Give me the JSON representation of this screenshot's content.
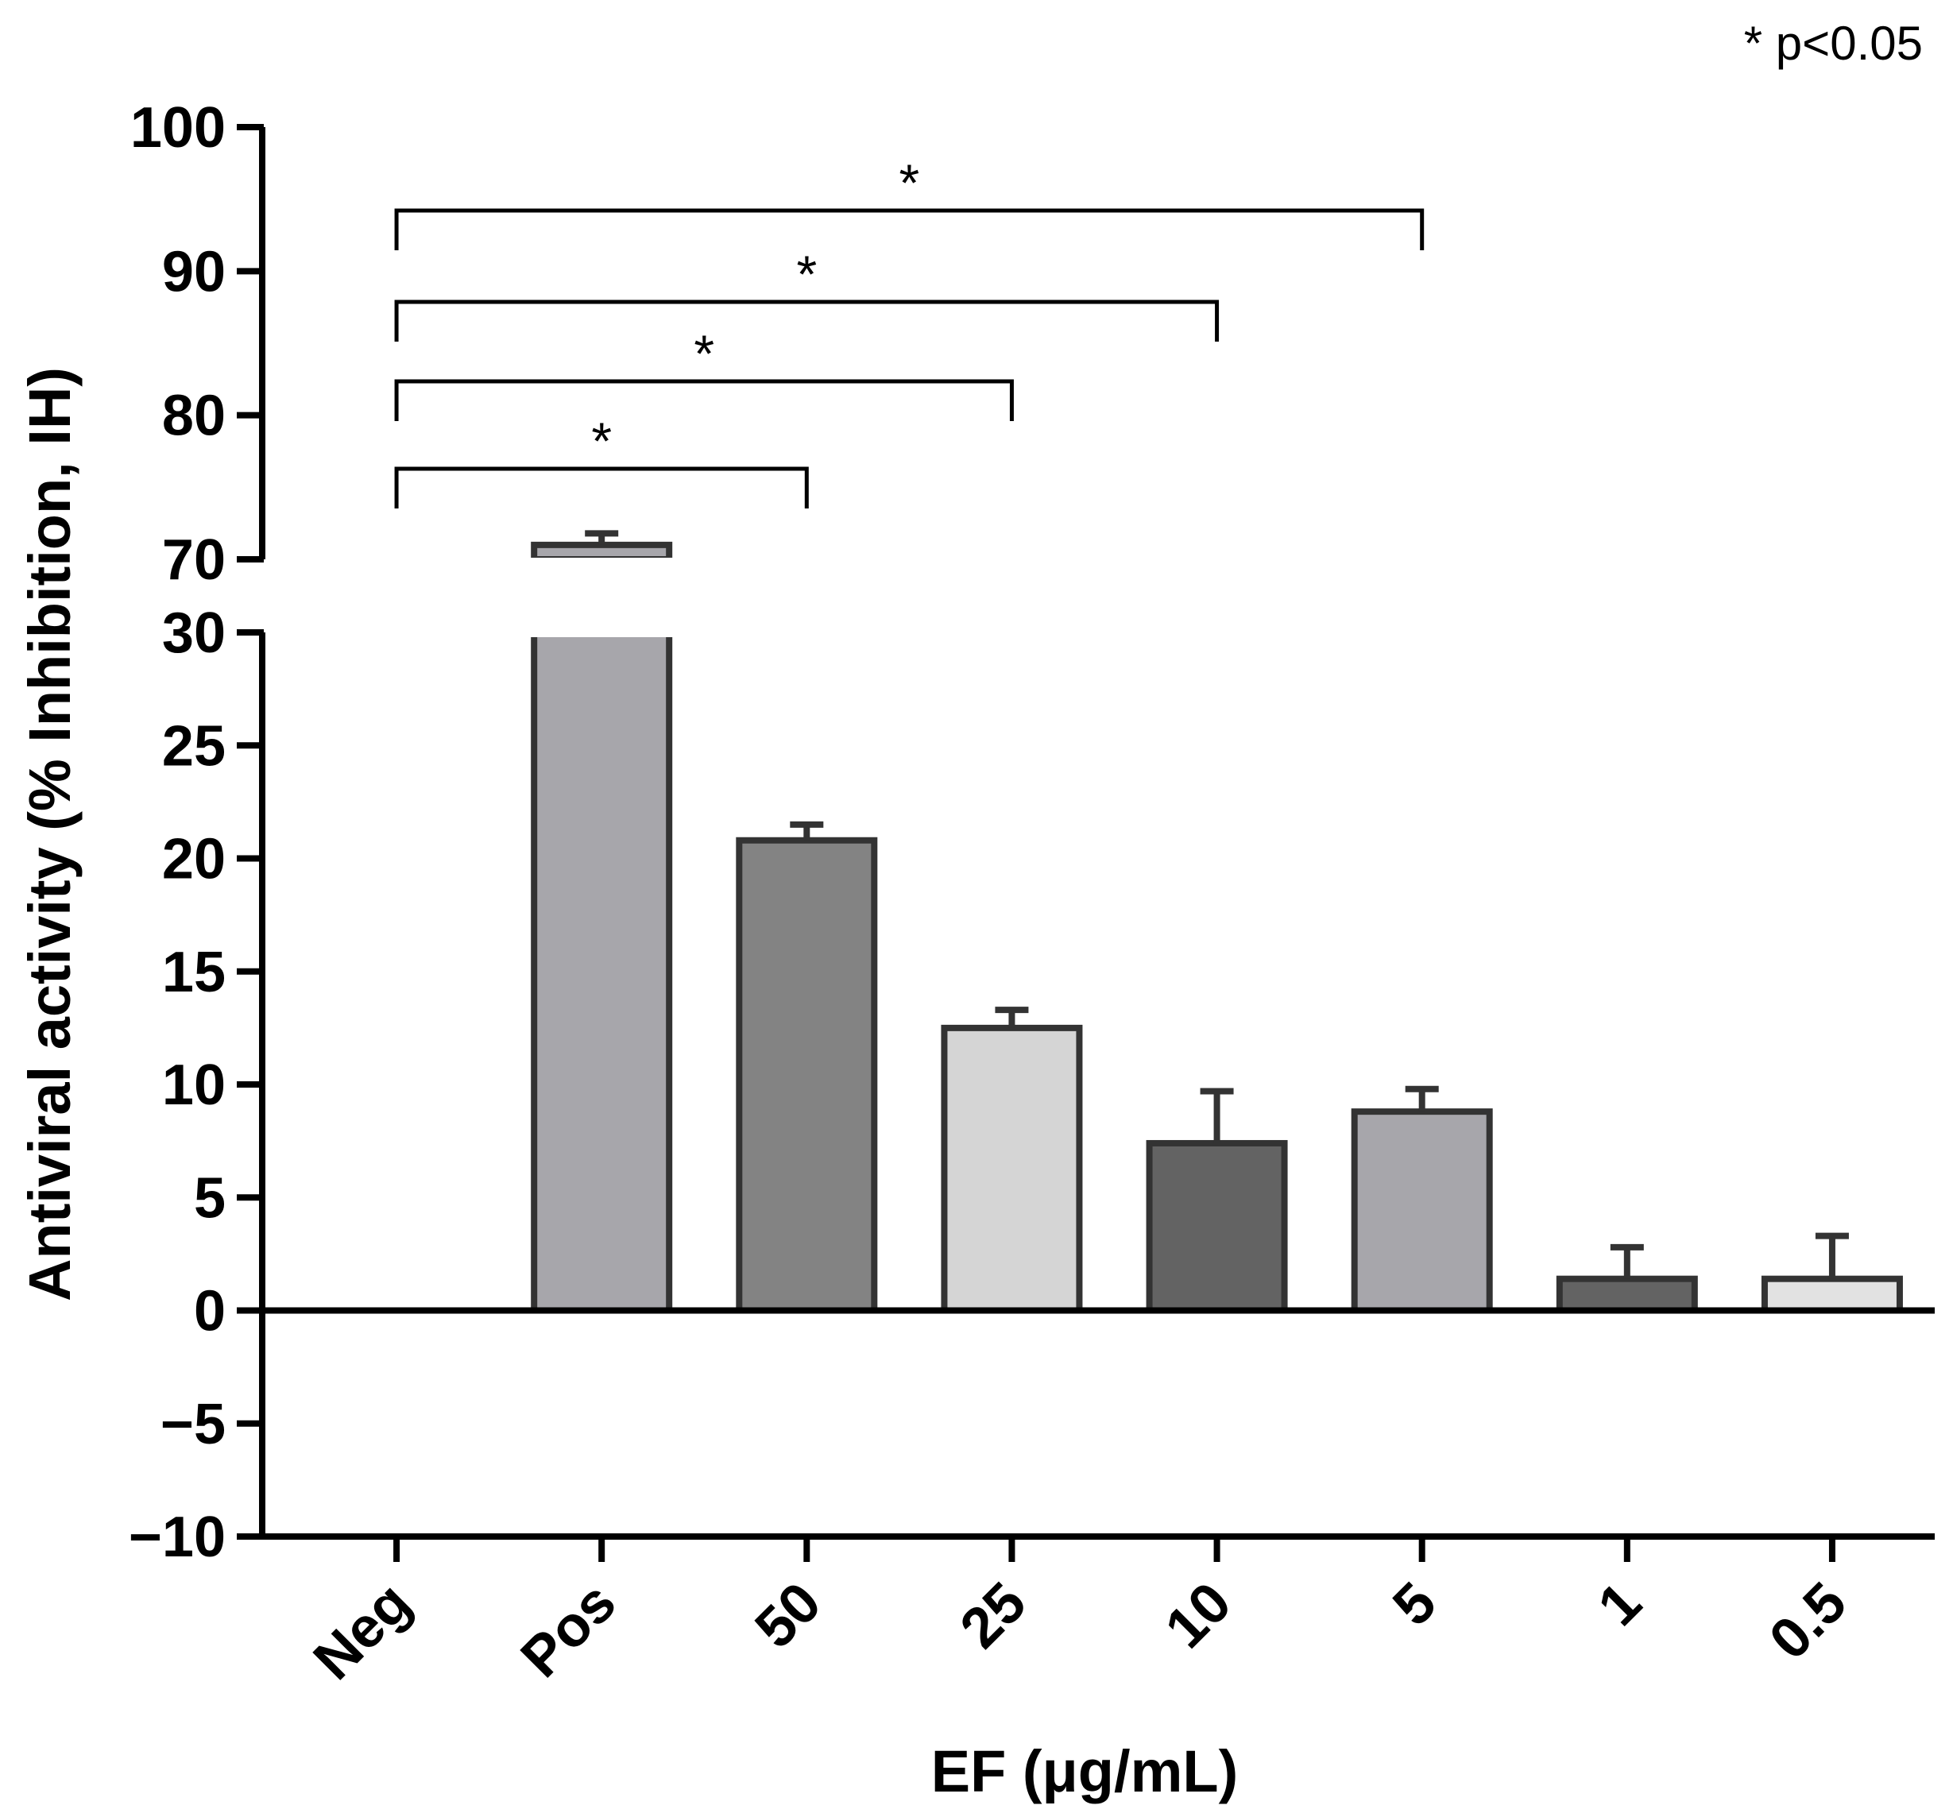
{
  "chart_data": {
    "type": "bar",
    "title": "",
    "xlabel": "EF (μg/mL)",
    "ylabel": "Antiviral activity (% Inhibition, IH)",
    "note": "* p<0.05",
    "categories": [
      "Neg",
      "Pos",
      "50",
      "25",
      "10",
      "5",
      "1",
      "0.5"
    ],
    "values": [
      0,
      71,
      20.8,
      12.5,
      7.4,
      8.8,
      1.4,
      1.4
    ],
    "errors": [
      0,
      0.8,
      0.7,
      0.8,
      2.3,
      1.0,
      1.4,
      1.9
    ],
    "bar_colors": [
      "#ffffff",
      "#a7a6ab",
      "#838383",
      "#d5d5d5",
      "#636363",
      "#a7a6ab",
      "#636363",
      "#e2e2e2"
    ],
    "y_axis": {
      "broken": true,
      "lower_range": [
        -10,
        30
      ],
      "upper_range": [
        70,
        100
      ],
      "lower_ticks": [
        -10,
        -5,
        0,
        5,
        10,
        15,
        20,
        25,
        30
      ],
      "upper_ticks": [
        70,
        80,
        90,
        100
      ],
      "lower_tick_labels": [
        "−10",
        "−5",
        "0",
        "5",
        "10",
        "15",
        "20",
        "25",
        "30"
      ],
      "upper_tick_labels": [
        "70",
        "80",
        "90",
        "100"
      ]
    },
    "significance": [
      {
        "from": "Neg",
        "to": "50",
        "label": "*"
      },
      {
        "from": "Neg",
        "to": "25",
        "label": "*"
      },
      {
        "from": "Neg",
        "to": "10",
        "label": "*"
      },
      {
        "from": "Neg",
        "to": "5",
        "label": "*"
      }
    ]
  }
}
